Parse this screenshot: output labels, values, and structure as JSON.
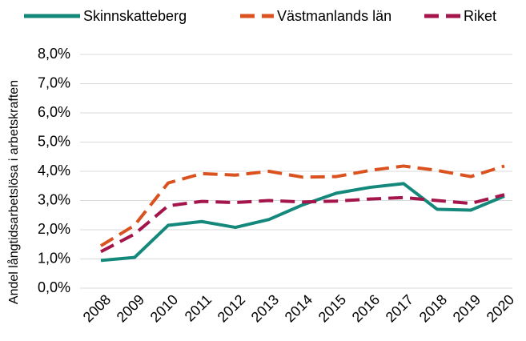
{
  "chart_data": {
    "type": "line",
    "y_label": "Andel långtidsarbetslösa i arbetskraften",
    "categories": [
      "2008",
      "2009",
      "2010",
      "2011",
      "2012",
      "2013",
      "2014",
      "2015",
      "2016",
      "2017",
      "2018",
      "2019",
      "2020"
    ],
    "series": [
      {
        "name": "Skinnskatteberg",
        "color": "#14897b",
        "dash": "solid",
        "values": [
          0.95,
          1.05,
          2.15,
          2.28,
          2.08,
          2.35,
          2.85,
          3.25,
          3.45,
          3.58,
          2.7,
          2.67,
          3.15
        ]
      },
      {
        "name": "Västmanlands län",
        "color": "#d9521f",
        "dash": "dashed",
        "values": [
          1.45,
          2.15,
          3.6,
          3.92,
          3.87,
          4.0,
          3.8,
          3.82,
          4.03,
          4.18,
          4.03,
          3.82,
          4.18
        ]
      },
      {
        "name": "Riket",
        "color": "#a3154b",
        "dash": "dashed",
        "values": [
          1.25,
          1.85,
          2.82,
          2.97,
          2.93,
          3.0,
          2.95,
          2.98,
          3.05,
          3.1,
          3.0,
          2.9,
          3.2
        ]
      }
    ],
    "ylim": [
      0,
      8
    ],
    "yticks": [
      {
        "value": 0,
        "label": "0,0%"
      },
      {
        "value": 1,
        "label": "1,0%"
      },
      {
        "value": 2,
        "label": "2,0%"
      },
      {
        "value": 3,
        "label": "3,0%"
      },
      {
        "value": 4,
        "label": "4,0%"
      },
      {
        "value": 5,
        "label": "5,0%"
      },
      {
        "value": 6,
        "label": "6,0%"
      },
      {
        "value": 7,
        "label": "7,0%"
      },
      {
        "value": 8,
        "label": "8,0%"
      }
    ],
    "grid": true,
    "legend": "top"
  }
}
